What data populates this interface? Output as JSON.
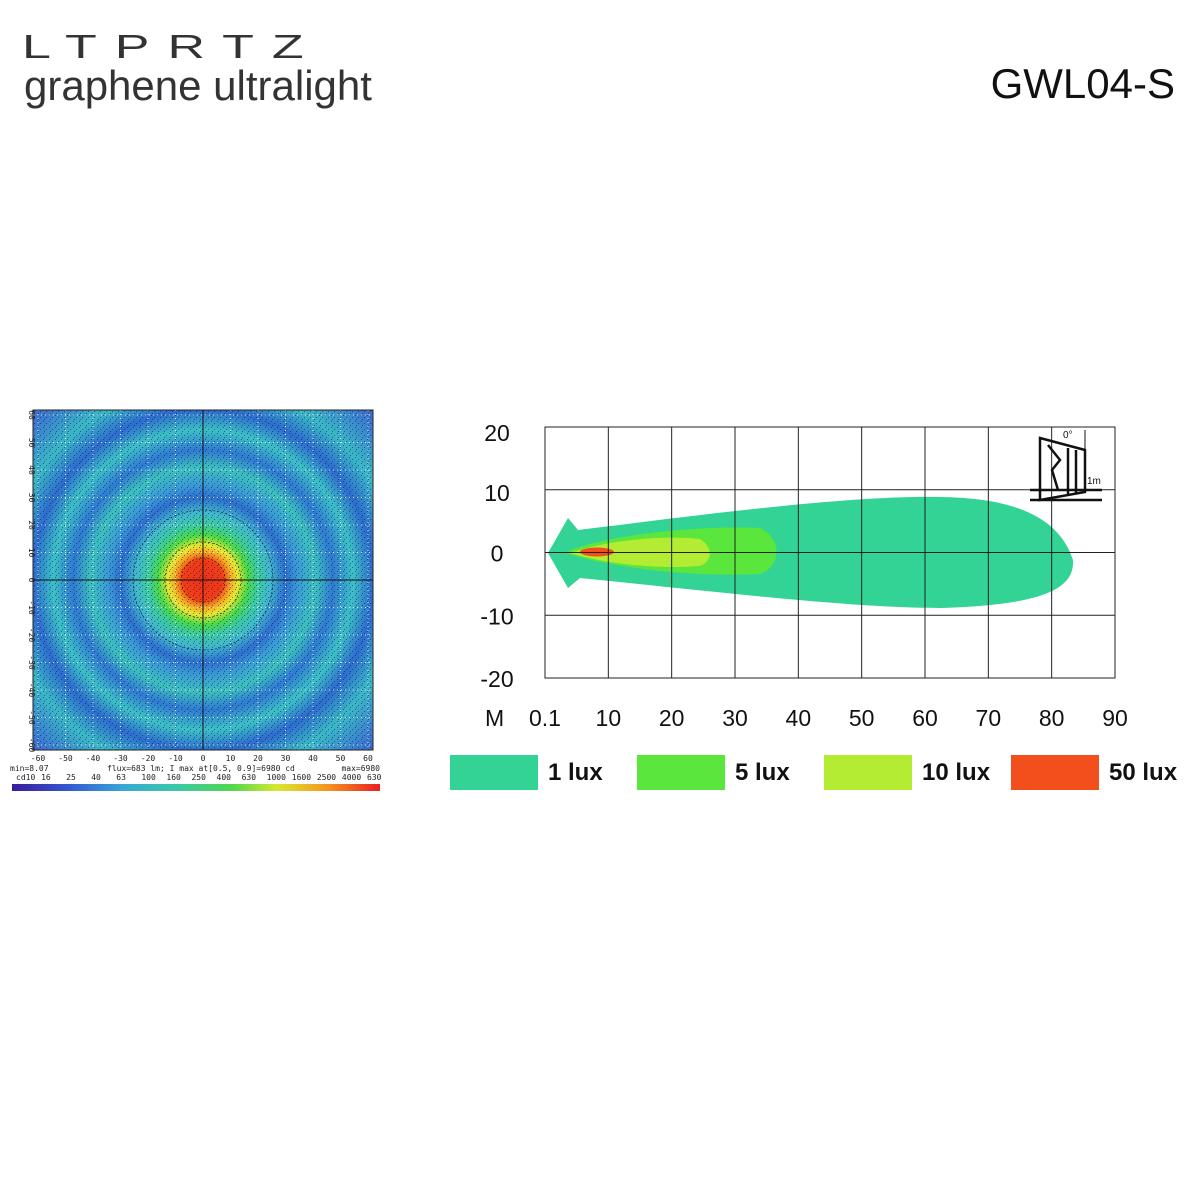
{
  "header": {
    "brand": "LTPRTZ",
    "tagline": "graphene ultralight",
    "model": "GWL04-S"
  },
  "candela_map": {
    "ticks": [
      -60,
      -50,
      -40,
      -30,
      -20,
      -10,
      0,
      10,
      20,
      30,
      40,
      50,
      60
    ],
    "min_label": "min=8.07",
    "info_label": "flux=683 lm; I max at[0.5, 0.9]=6980 cd",
    "max_label": "max=6980",
    "scale_labels": [
      "cd10",
      "16",
      "25",
      "40",
      "63",
      "100",
      "160",
      "250",
      "400",
      "630",
      "1000",
      "1600",
      "2500",
      "4000",
      "630"
    ]
  },
  "isolux": {
    "xlim": [
      0,
      90
    ],
    "ylim": [
      -20,
      20
    ],
    "x_unit": "M",
    "xticks": [
      {
        "value": 0,
        "label": "0.1"
      },
      10,
      20,
      30,
      40,
      50,
      60,
      70,
      80,
      90
    ],
    "yticks": [
      20,
      10,
      0,
      -10,
      -20
    ],
    "icon_angle": "0°",
    "icon_distance": "1m",
    "legend": [
      {
        "name": "1 lux",
        "color": "#33d395"
      },
      {
        "name": "5 lux",
        "color": "#5ae63c"
      },
      {
        "name": "10 lux",
        "color": "#b4ec34"
      },
      {
        "name": "50 lux",
        "color": "#f24f1c"
      }
    ]
  }
}
